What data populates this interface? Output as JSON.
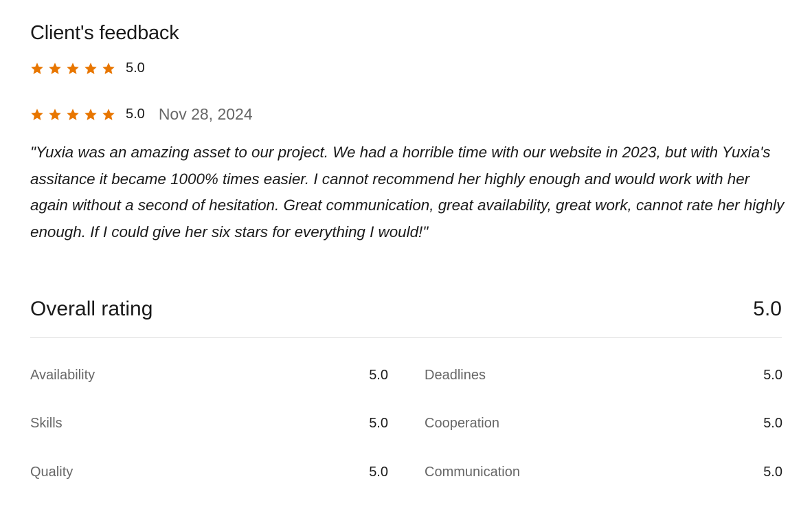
{
  "colors": {
    "star": "#e87600",
    "text": "#1a1a1a",
    "muted": "#676767"
  },
  "title": "Client's feedback",
  "summary": {
    "rating": 5,
    "rating_label": "5.0",
    "icon": "star-icon"
  },
  "review": {
    "rating": 5,
    "rating_label": "5.0",
    "date": "Nov 28, 2024",
    "text": "\"Yuxia was an amazing asset to our project. We had a horrible time with our website in 2023, but with Yuxia's assitance it became 1000% times easier. I cannot recommend her highly enough and would work with her again without a second of hesitation. Great communication, great availability, great work, cannot rate her highly enough. If I could give her six stars for everything I would!\""
  },
  "overall": {
    "label": "Overall rating",
    "value": "5.0"
  },
  "categories": [
    {
      "label": "Availability",
      "value": "5.0"
    },
    {
      "label": "Deadlines",
      "value": "5.0"
    },
    {
      "label": "Skills",
      "value": "5.0"
    },
    {
      "label": "Cooperation",
      "value": "5.0"
    },
    {
      "label": "Quality",
      "value": "5.0"
    },
    {
      "label": "Communication",
      "value": "5.0"
    }
  ]
}
